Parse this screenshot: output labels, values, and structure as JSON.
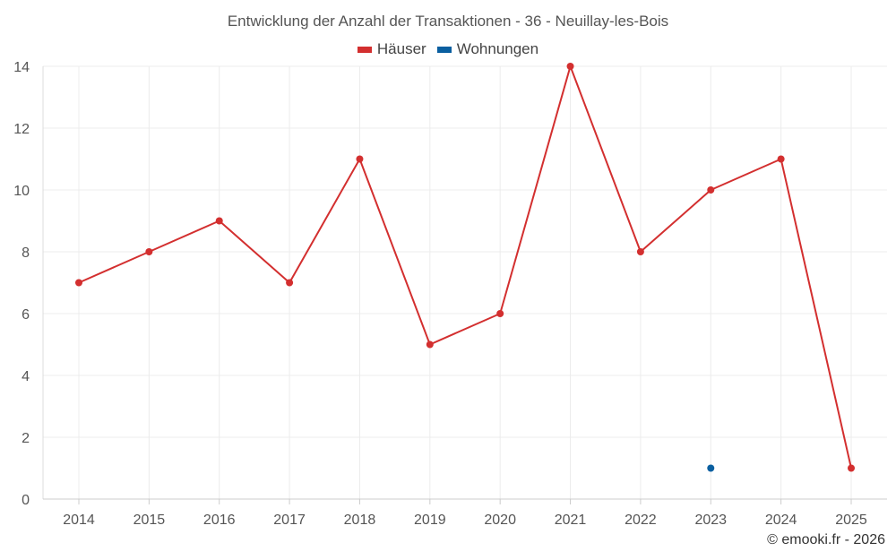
{
  "chart_data": {
    "type": "line",
    "title": "Entwicklung der Anzahl der Transaktionen - 36 - Neuillay-les-Bois",
    "categories": [
      "2014",
      "2015",
      "2016",
      "2017",
      "2018",
      "2019",
      "2020",
      "2021",
      "2022",
      "2023",
      "2024",
      "2025"
    ],
    "series": [
      {
        "name": "Häuser",
        "color": "#d32f2f",
        "values": [
          7,
          8,
          9,
          7,
          11,
          5,
          6,
          14,
          8,
          10,
          11,
          1
        ]
      },
      {
        "name": "Wohnungen",
        "color": "#0a5fa0",
        "values": [
          null,
          null,
          null,
          null,
          null,
          null,
          null,
          null,
          null,
          1,
          null,
          null
        ]
      }
    ],
    "ylim": [
      0,
      14
    ],
    "yticks": [
      0,
      2,
      4,
      6,
      8,
      10,
      12,
      14
    ],
    "xlabel": "",
    "ylabel": "",
    "grid": true,
    "legend_position": "top-center"
  },
  "credit": "© emooki.fr - 2026"
}
